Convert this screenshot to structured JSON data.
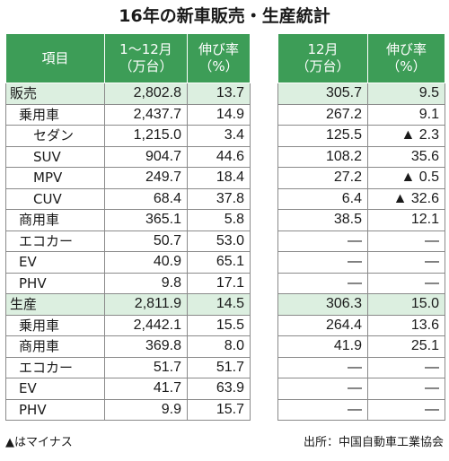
{
  "title": "16年の新車販売・生産統計",
  "left_headers": [
    "項目",
    "1～12月\n（万台）",
    "伸び率\n（%）"
  ],
  "right_headers": [
    "12月\n（万台）",
    "伸び率\n（%）"
  ],
  "rows": [
    {
      "label": "販売",
      "level": 0,
      "section": true,
      "annual": "2,802.8",
      "annual_growth": "13.7",
      "dec": "305.7",
      "dec_growth": "9.5"
    },
    {
      "label": "乗用車",
      "level": 1,
      "section": false,
      "annual": "2,437.7",
      "annual_growth": "14.9",
      "dec": "267.2",
      "dec_growth": "9.1"
    },
    {
      "label": "セダン",
      "level": 2,
      "section": false,
      "annual": "1,215.0",
      "annual_growth": "3.4",
      "dec": "125.5",
      "dec_growth": "▲ 2.3"
    },
    {
      "label": "SUV",
      "level": 2,
      "section": false,
      "annual": "904.7",
      "annual_growth": "44.6",
      "dec": "108.2",
      "dec_growth": "35.6"
    },
    {
      "label": "MPV",
      "level": 2,
      "section": false,
      "annual": "249.7",
      "annual_growth": "18.4",
      "dec": "27.2",
      "dec_growth": "▲ 0.5"
    },
    {
      "label": "CUV",
      "level": 2,
      "section": false,
      "annual": "68.4",
      "annual_growth": "37.8",
      "dec": "6.4",
      "dec_growth": "▲ 32.6"
    },
    {
      "label": "商用車",
      "level": 1,
      "section": false,
      "annual": "365.1",
      "annual_growth": "5.8",
      "dec": "38.5",
      "dec_growth": "12.1"
    },
    {
      "label": "エコカー",
      "level": 1,
      "section": false,
      "annual": "50.7",
      "annual_growth": "53.0",
      "dec": "―",
      "dec_growth": "―"
    },
    {
      "label": "EV",
      "level": 1,
      "section": false,
      "annual": "40.9",
      "annual_growth": "65.1",
      "dec": "―",
      "dec_growth": "―"
    },
    {
      "label": "PHV",
      "level": 1,
      "section": false,
      "annual": "9.8",
      "annual_growth": "17.1",
      "dec": "―",
      "dec_growth": "―"
    },
    {
      "label": "生産",
      "level": 0,
      "section": true,
      "annual": "2,811.9",
      "annual_growth": "14.5",
      "dec": "306.3",
      "dec_growth": "15.0"
    },
    {
      "label": "乗用車",
      "level": 1,
      "section": false,
      "annual": "2,442.1",
      "annual_growth": "15.5",
      "dec": "264.4",
      "dec_growth": "13.6"
    },
    {
      "label": "商用車",
      "level": 1,
      "section": false,
      "annual": "369.8",
      "annual_growth": "8.0",
      "dec": "41.9",
      "dec_growth": "25.1"
    },
    {
      "label": "エコカー",
      "level": 1,
      "section": false,
      "annual": "51.7",
      "annual_growth": "51.7",
      "dec": "―",
      "dec_growth": "―"
    },
    {
      "label": "EV",
      "level": 1,
      "section": false,
      "annual": "41.7",
      "annual_growth": "63.9",
      "dec": "―",
      "dec_growth": "―"
    },
    {
      "label": "PHV",
      "level": 1,
      "section": false,
      "annual": "9.9",
      "annual_growth": "15.7",
      "dec": "―",
      "dec_growth": "―"
    }
  ],
  "footnote_left": "▲はマイナス",
  "footnote_right": "出所：中国自動車工業協会",
  "colors": {
    "header_bg": "#3d9d57",
    "section_bg": "#dcefe0",
    "border": "#8a8a8a"
  }
}
